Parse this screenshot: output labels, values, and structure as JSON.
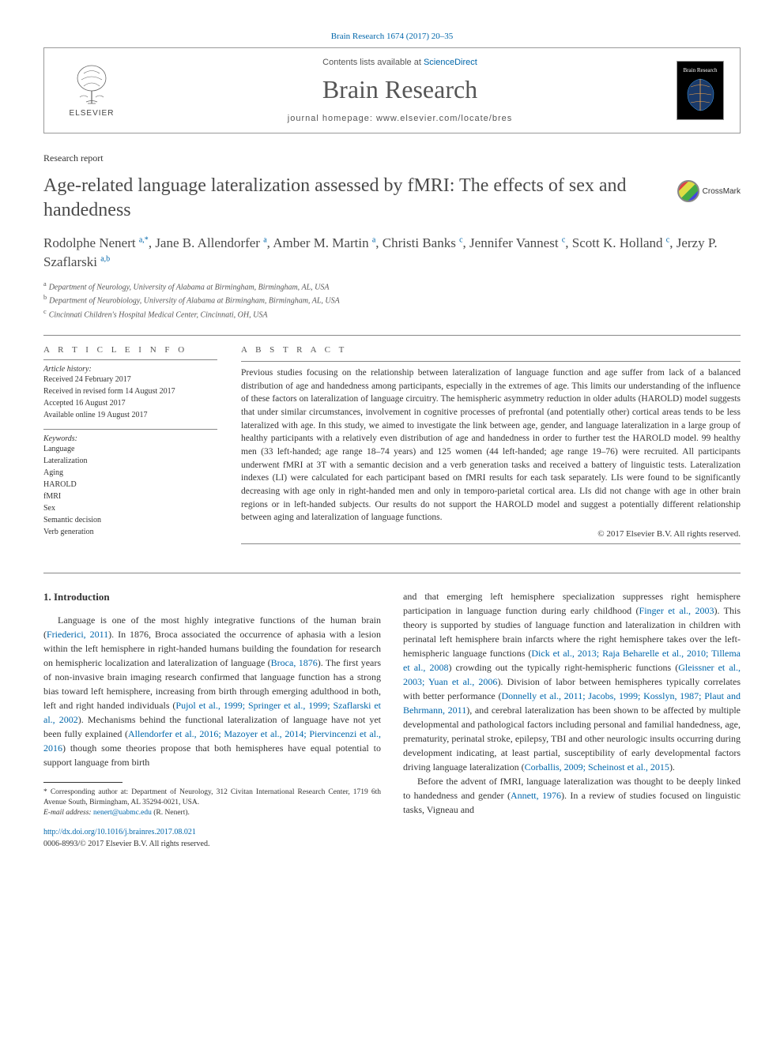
{
  "citation": "Brain Research 1674 (2017) 20–35",
  "header": {
    "contents_prefix": "Contents lists available at ",
    "contents_link": "ScienceDirect",
    "journal_title": "Brain Research",
    "homepage_prefix": "journal homepage: ",
    "homepage_url": "www.elsevier.com/locate/bres",
    "publisher_name": "ELSEVIER",
    "cover_label": "Brain Research"
  },
  "article": {
    "type": "Research report",
    "title": "Age-related language lateralization assessed by fMRI: The effects of sex and handedness",
    "crossmark_label": "CrossMark"
  },
  "authors_html": "Rodolphe Nenert <sup>a,*</sup>, Jane B. Allendorfer <sup>a</sup>, Amber M. Martin <sup>a</sup>, Christi Banks <sup>c</sup>, Jennifer Vannest <sup>c</sup>, Scott K. Holland <sup>c</sup>, Jerzy P. Szaflarski <sup>a,b</sup>",
  "affiliations": [
    {
      "sup": "a",
      "text": "Department of Neurology, University of Alabama at Birmingham, Birmingham, AL, USA"
    },
    {
      "sup": "b",
      "text": "Department of Neurobiology, University of Alabama at Birmingham, Birmingham, AL, USA"
    },
    {
      "sup": "c",
      "text": "Cincinnati Children's Hospital Medical Center, Cincinnati, OH, USA"
    }
  ],
  "info": {
    "header": "A R T I C L E   I N F O",
    "history_label": "Article history:",
    "history": [
      "Received 24 February 2017",
      "Received in revised form 14 August 2017",
      "Accepted 16 August 2017",
      "Available online 19 August 2017"
    ],
    "keywords_label": "Keywords:",
    "keywords": [
      "Language",
      "Lateralization",
      "Aging",
      "HAROLD",
      "fMRI",
      "Sex",
      "Semantic decision",
      "Verb generation"
    ]
  },
  "abstract": {
    "header": "A B S T R A C T",
    "text": "Previous studies focusing on the relationship between lateralization of language function and age suffer from lack of a balanced distribution of age and handedness among participants, especially in the extremes of age. This limits our understanding of the influence of these factors on lateralization of language circuitry. The hemispheric asymmetry reduction in older adults (HAROLD) model suggests that under similar circumstances, involvement in cognitive processes of prefrontal (and potentially other) cortical areas tends to be less lateralized with age. In this study, we aimed to investigate the link between age, gender, and language lateralization in a large group of healthy participants with a relatively even distribution of age and handedness in order to further test the HAROLD model. 99 healthy men (33 left-handed; age range 18–74 years) and 125 women (44 left-handed; age range 19–76) were recruited. All participants underwent fMRI at 3T with a semantic decision and a verb generation tasks and received a battery of linguistic tests. Lateralization indexes (LI) were calculated for each participant based on fMRI results for each task separately. LIs were found to be significantly decreasing with age only in right-handed men and only in temporo-parietal cortical area. LIs did not change with age in other brain regions or in left-handed subjects. Our results do not support the HAROLD model and suggest a potentially different relationship between aging and lateralization of language functions.",
    "copyright": "© 2017 Elsevier B.V. All rights reserved."
  },
  "body": {
    "section_number": "1.",
    "section_title": "Introduction",
    "col1_p1": "Language is one of the most highly integrative functions of the human brain (<a>Friederici, 2011</a>). In 1876, Broca associated the occurrence of aphasia with a lesion within the left hemisphere in right-handed humans building the foundation for research on hemispheric localization and lateralization of language (<a>Broca, 1876</a>). The first years of non-invasive brain imaging research confirmed that language function has a strong bias toward left hemisphere, increasing from birth through emerging adulthood in both, left and right handed individuals (<a>Pujol et al., 1999; Springer et al., 1999; Szaflarski et al., 2002</a>). Mechanisms behind the functional lateralization of language have not yet been fully explained (<a>Allendorfer et al., 2016; Mazoyer et al., 2014; Piervincenzi et al., 2016</a>) though some theories propose that both hemispheres have equal potential to support language from birth",
    "col2_p1": "and that emerging left hemisphere specialization suppresses right hemisphere participation in language function during early childhood (<a>Finger et al., 2003</a>). This theory is supported by studies of language function and lateralization in children with perinatal left hemisphere brain infarcts where the right hemisphere takes over the left-hemispheric language functions (<a>Dick et al., 2013; Raja Beharelle et al., 2010; Tillema et al., 2008</a>) crowding out the typically right-hemispheric functions (<a>Gleissner et al., 2003; Yuan et al., 2006</a>). Division of labor between hemispheres typically correlates with better performance (<a>Donnelly et al., 2011; Jacobs, 1999; Kosslyn, 1987; Plaut and Behrmann, 2011</a>), and cerebral lateralization has been shown to be affected by multiple developmental and pathological factors including personal and familial handedness, age, prematurity, perinatal stroke, epilepsy, TBI and other neurologic insults occurring during development indicating, at least partial, susceptibility of early developmental factors driving language lateralization (<a>Corballis, 2009; Scheinost et al., 2015</a>).",
    "col2_p2": "Before the advent of fMRI, language lateralization was thought to be deeply linked to handedness and gender (<a>Annett, 1976</a>). In a review of studies focused on linguistic tasks, Vigneau and"
  },
  "footnote": {
    "corresponding": "* Corresponding author at: Department of Neurology, 312 Civitan International Research Center, 1719 6th Avenue South, Birmingham, AL 35294-0021, USA.",
    "email_label": "E-mail address:",
    "email_value": "nenert@uabmc.edu",
    "email_person": "(R. Nenert)."
  },
  "doi": {
    "url": "http://dx.doi.org/10.1016/j.brainres.2017.08.021",
    "issn_line": "0006-8993/© 2017 Elsevier B.V. All rights reserved."
  },
  "colors": {
    "link": "#0066aa",
    "text": "#333333",
    "heading": "#4a4a4a",
    "border": "#888888"
  }
}
